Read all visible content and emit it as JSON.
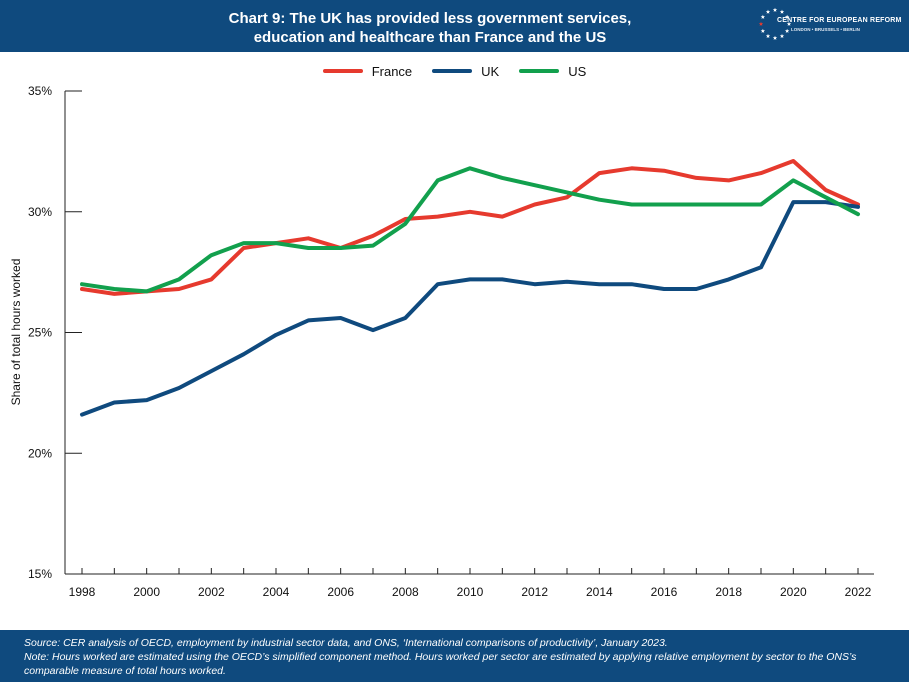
{
  "title_line1": "Chart 9: The UK has provided less government services,",
  "title_line2": "education and healthcare than France and the US",
  "logo": {
    "name": "CENTRE FOR EUROPEAN REFORM",
    "cities": "LONDON • BRUSSELS • BERLIN",
    "icon": "eu-stars-icon",
    "colors": {
      "band": "#0f4a7e",
      "accent": "#e63a2e"
    }
  },
  "footer": {
    "source": "Source: CER analysis of OECD, employment by industrial sector data, and ONS, ‘International comparisons of productivity’, January 2023.",
    "note1": "Note: Hours worked are estimated using the OECD’s simplified component method. Hours worked per sector are estimated by applying relative employment by sector to the ONS’s",
    "note2": "comparable measure of total hours worked."
  },
  "chart_data": {
    "type": "line",
    "title": "Chart 9: The UK has provided less government services, education and healthcare than France and the US",
    "xlabel": "",
    "ylabel": "Share of total hours worked",
    "x": [
      1998,
      1999,
      2000,
      2001,
      2002,
      2003,
      2004,
      2005,
      2006,
      2007,
      2008,
      2009,
      2010,
      2011,
      2012,
      2013,
      2014,
      2015,
      2016,
      2017,
      2018,
      2019,
      2020,
      2021,
      2022
    ],
    "xticks": [
      1998,
      2000,
      2002,
      2004,
      2006,
      2008,
      2010,
      2012,
      2014,
      2016,
      2018,
      2020,
      2022
    ],
    "xlim": [
      1998,
      2022
    ],
    "ylim": [
      15,
      35
    ],
    "yticks": [
      15,
      20,
      25,
      30,
      35
    ],
    "ytick_labels": [
      "15%",
      "20%",
      "25%",
      "30%",
      "35%"
    ],
    "grid": false,
    "legend": "top-center",
    "series": [
      {
        "name": "France",
        "color": "#e63a2e",
        "values": [
          26.8,
          26.6,
          26.7,
          26.8,
          27.2,
          28.5,
          28.7,
          28.9,
          28.5,
          29.0,
          29.7,
          29.8,
          30.0,
          29.8,
          30.3,
          30.6,
          31.6,
          31.8,
          31.7,
          31.4,
          31.3,
          31.6,
          32.1,
          30.9,
          30.3
        ]
      },
      {
        "name": "UK",
        "color": "#0f4a7e",
        "values": [
          21.6,
          22.1,
          22.2,
          22.7,
          23.4,
          24.1,
          24.9,
          25.5,
          25.6,
          25.1,
          25.6,
          27.0,
          27.2,
          27.2,
          27.0,
          27.1,
          27.0,
          27.0,
          26.8,
          26.8,
          27.2,
          27.7,
          30.4,
          30.4,
          30.2
        ]
      },
      {
        "name": "US",
        "color": "#12a04d",
        "values": [
          27.0,
          26.8,
          26.7,
          27.2,
          28.2,
          28.7,
          28.7,
          28.5,
          28.5,
          28.6,
          29.5,
          31.3,
          31.8,
          31.4,
          31.1,
          30.8,
          30.5,
          30.3,
          30.3,
          30.3,
          30.3,
          30.3,
          31.3,
          30.6,
          29.9
        ]
      }
    ]
  }
}
